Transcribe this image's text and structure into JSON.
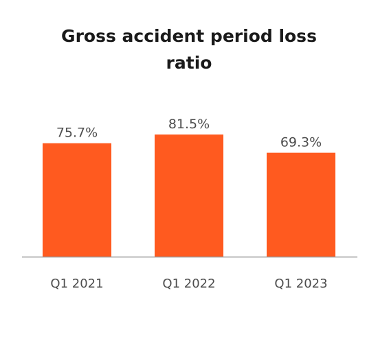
{
  "chart_data": {
    "type": "bar",
    "title": "Gross accident period loss ratio",
    "categories": [
      "Q1 2021",
      "Q1 2022",
      "Q1 2023"
    ],
    "values": [
      75.7,
      81.5,
      69.3
    ],
    "value_labels": [
      "75.7%",
      "81.5%",
      "69.3%"
    ],
    "xlabel": "",
    "ylabel": "",
    "ylim": [
      0,
      100
    ],
    "grid": false,
    "bar_color": "#ff5a1f",
    "axis_color": "#9a9a9a"
  }
}
